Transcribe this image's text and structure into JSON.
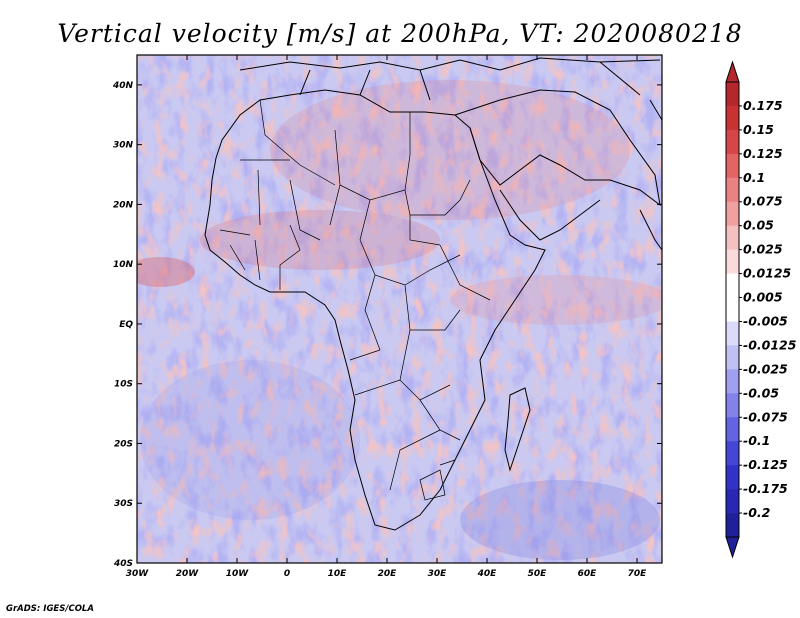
{
  "title": "Vertical velocity [m/s] at 200hPa, VT: 2020080218",
  "credit": "GrADS: IGES/COLA",
  "map": {
    "lon_range": [
      -30,
      75
    ],
    "lat_range": [
      -40,
      45
    ],
    "x_ticks": [
      "30W",
      "20W",
      "10W",
      "0",
      "10E",
      "20E",
      "30E",
      "40E",
      "50E",
      "60E",
      "70E"
    ],
    "x_tick_lons": [
      -30,
      -20,
      -10,
      0,
      10,
      20,
      30,
      40,
      50,
      60,
      70
    ],
    "y_ticks": [
      "40S",
      "30S",
      "20S",
      "10S",
      "EQ",
      "10N",
      "20N",
      "30N",
      "40N"
    ],
    "y_tick_lats": [
      -40,
      -30,
      -20,
      -10,
      0,
      10,
      20,
      30,
      40
    ]
  },
  "colorbar": {
    "labels": [
      "0.175",
      "0.15",
      "0.125",
      "0.1",
      "0.075",
      "0.05",
      "0.025",
      "0.0125",
      "0.005",
      "-0.005",
      "-0.0125",
      "-0.025",
      "-0.05",
      "-0.075",
      "-0.1",
      "-0.125",
      "-0.175",
      "-0.2"
    ],
    "colors": [
      "#b4282d",
      "#c83232",
      "#d64646",
      "#e26464",
      "#ea8282",
      "#f0a0a0",
      "#f5c0c0",
      "#fadada",
      "#ffffff",
      "#ffffff",
      "#dadafa",
      "#c0c0f5",
      "#a0a0f0",
      "#8282ea",
      "#6464e2",
      "#4646d6",
      "#3232c8",
      "#2828b4",
      "#20209a"
    ]
  }
}
